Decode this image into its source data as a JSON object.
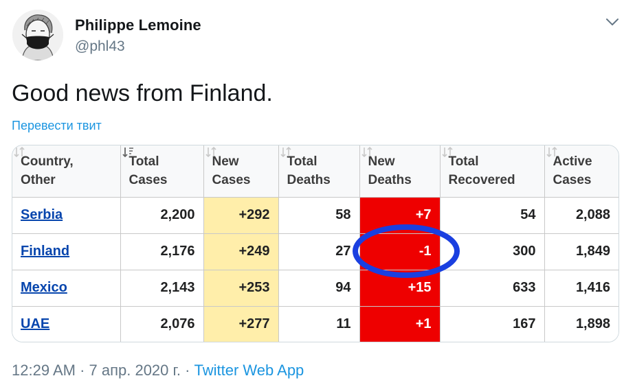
{
  "author": {
    "name": "Philippe Lemoine",
    "handle": "@phl43"
  },
  "tweet": {
    "text": "Good news from Finland.",
    "translate_label": "Перевести твит"
  },
  "table": {
    "headers": [
      [
        "Country,",
        "Other"
      ],
      [
        "Total",
        "Cases"
      ],
      [
        "New",
        "Cases"
      ],
      [
        "Total",
        "Deaths"
      ],
      [
        "New",
        "Deaths"
      ],
      [
        "Total",
        "Recovered"
      ],
      [
        "Active",
        "Cases"
      ]
    ],
    "rows": [
      {
        "country": "Serbia",
        "total_cases": "2,200",
        "new_cases": "+292",
        "total_deaths": "58",
        "new_deaths": "+7",
        "total_recovered": "54",
        "active_cases": "2,088"
      },
      {
        "country": "Finland",
        "total_cases": "2,176",
        "new_cases": "+249",
        "total_deaths": "27",
        "new_deaths": "-1",
        "total_recovered": "300",
        "active_cases": "1,849"
      },
      {
        "country": "Mexico",
        "total_cases": "2,143",
        "new_cases": "+253",
        "total_deaths": "94",
        "new_deaths": "+15",
        "total_recovered": "633",
        "active_cases": "1,416"
      },
      {
        "country": "UAE",
        "total_cases": "2,076",
        "new_cases": "+277",
        "total_deaths": "11",
        "new_deaths": "+1",
        "total_recovered": "167",
        "active_cases": "1,898"
      }
    ],
    "highlighted_row": 1,
    "colors": {
      "new_cases_bg": "#ffeeaa",
      "new_deaths_bg": "#ee0000",
      "annotation_circle": "#1a3fe0",
      "link": "#0645ad"
    }
  },
  "footer": {
    "timestamp": "12:29 AM · 7 апр. 2020 г. · ",
    "app": "Twitter Web App"
  },
  "icons": {
    "avatar": "masked-portrait-avatar",
    "caret": "chevron-down-icon",
    "sort": "sort-icon"
  }
}
